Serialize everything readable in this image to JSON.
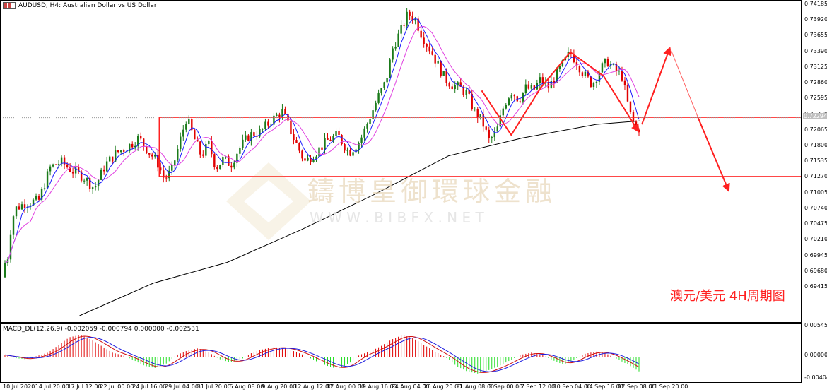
{
  "header": {
    "symbol_title": "AUDUSD, H4:  Australian Dollar vs US Dollar",
    "macd_title": "MACD_DL(12,26,9) -0.002059 -0.000794 0.000000 -0.002531"
  },
  "watermark": {
    "cn": "鑄博皇御環球金融",
    "url": "W W W . B I B F X . N E T"
  },
  "caption": "澳元/美元 4H周期图",
  "colors": {
    "bull": "#1a7a1a",
    "bear": "#e00000",
    "ma_fast": "#1a1aff",
    "ma_slow": "#e040e0",
    "ma_200": "#000000",
    "annotation": "#ff2020",
    "hist_pos": "#e00000",
    "hist_neg": "#22dd22"
  },
  "chart_data": [
    {
      "type": "candlestick",
      "title": "AUDUSD, H4:  Australian Dollar vs US Dollar",
      "price_axis": [
        "0.74185",
        "0.73920",
        "0.73655",
        "0.73390",
        "0.73125",
        "0.72860",
        "0.72595",
        "0.72330",
        "0.72065",
        "0.71800",
        "0.71535",
        "0.71270",
        "0.71005",
        "0.70740",
        "0.70475",
        "0.70210",
        "0.69945",
        "0.69680",
        "0.69415"
      ],
      "current_price": "0.72294",
      "time_axis": [
        "10 Jul 2020",
        "14 Jul 20:00",
        "17 Jul 12:00",
        "22 Jul 00:00",
        "24 Jul 16:00",
        "29 Jul 04:00",
        "31 Jul 20:00",
        "5 Aug 08:00",
        "9 Aug 20:00",
        "12 Aug 12:00",
        "17 Aug 00:00",
        "19 Aug 16:00",
        "24 Aug 04:00",
        "26 Aug 20:00",
        "31 Aug 08:00",
        "3 Sep 00:00",
        "7 Sep 12:00",
        "10 Sep 04:00",
        "14 Sep 16:00",
        "17 Sep 08:00",
        "21 Sep 20:00"
      ],
      "close_path": [
        [
          0.697,
          0.696
        ],
        [
          0.699,
          0.6985
        ],
        [
          0.701,
          0.698
        ],
        [
          0.704,
          0.7005
        ],
        [
          0.706,
          0.7035
        ],
        [
          0.712,
          0.7075
        ],
        [
          0.726,
          0.7085
        ],
        [
          0.745,
          0.709
        ],
        [
          0.76,
          0.7145
        ],
        [
          0.775,
          0.7155
        ],
        [
          0.79,
          0.714
        ],
        [
          0.805,
          0.713
        ],
        [
          0.82,
          0.711
        ],
        [
          0.835,
          0.715
        ],
        [
          0.85,
          0.717
        ],
        [
          0.865,
          0.718
        ],
        [
          0.88,
          0.7195
        ],
        [
          0.895,
          0.717
        ],
        [
          0.905,
          0.7155
        ],
        [
          0.915,
          0.7125
        ],
        [
          0.925,
          0.714
        ],
        [
          0.935,
          0.7185
        ],
        [
          0.945,
          0.723
        ],
        [
          0.955,
          0.7195
        ],
        [
          0.965,
          0.7165
        ],
        [
          0.975,
          0.7185
        ],
        [
          0.985,
          0.7145
        ],
        [
          0.995,
          0.716
        ],
        [
          1.005,
          0.715
        ],
        [
          1.015,
          0.7175
        ],
        [
          1.03,
          0.72
        ],
        [
          1.045,
          0.7205
        ],
        [
          1.06,
          0.7225
        ],
        [
          1.075,
          0.724
        ],
        [
          1.09,
          0.7195
        ],
        [
          1.105,
          0.7155
        ],
        [
          1.12,
          0.717
        ],
        [
          1.135,
          0.719
        ],
        [
          1.15,
          0.72
        ],
        [
          1.165,
          0.717
        ],
        [
          1.18,
          0.719
        ],
        [
          1.195,
          0.7235
        ],
        [
          1.205,
          0.7265
        ],
        [
          1.215,
          0.729
        ],
        [
          1.225,
          0.735
        ],
        [
          1.235,
          0.7375
        ],
        [
          1.245,
          0.7405
        ],
        [
          1.255,
          0.7395
        ],
        [
          1.265,
          0.7365
        ],
        [
          1.275,
          0.7345
        ],
        [
          1.285,
          0.732
        ],
        [
          1.295,
          0.7295
        ],
        [
          1.305,
          0.7285
        ],
        [
          1.315,
          0.728
        ],
        [
          1.325,
          0.727
        ],
        [
          1.335,
          0.724
        ],
        [
          1.345,
          0.7225
        ],
        [
          1.355,
          0.719
        ],
        [
          1.365,
          0.7205
        ],
        [
          1.375,
          0.725
        ],
        [
          1.385,
          0.7275
        ],
        [
          1.395,
          0.726
        ],
        [
          1.405,
          0.728
        ],
        [
          1.415,
          0.7275
        ],
        [
          1.425,
          0.7295
        ],
        [
          1.435,
          0.728
        ],
        [
          1.445,
          0.73
        ],
        [
          1.455,
          0.732
        ],
        [
          1.465,
          0.734
        ],
        [
          1.475,
          0.732
        ],
        [
          1.485,
          0.73
        ],
        [
          1.495,
          0.7285
        ],
        [
          1.505,
          0.731
        ],
        [
          1.515,
          0.7325
        ],
        [
          1.525,
          0.731
        ],
        [
          1.535,
          0.73
        ],
        [
          1.545,
          0.724
        ],
        [
          1.555,
          0.7205
        ],
        [
          1.56,
          0.7215
        ]
      ],
      "annotations": {
        "box_top": 0.723,
        "box_bottom": 0.713,
        "forecast": [
          [
            1.56,
            0.7215
          ],
          [
            1.6,
            0.7348
          ],
          [
            1.68,
            0.7105
          ]
        ]
      }
    },
    {
      "type": "bar",
      "title": "MACD_DL(12,26,9) -0.002059 -0.000794 0.000000 -0.002531",
      "axis": [
        "0.005456",
        "0.000000",
        "-0.004047"
      ],
      "hist_pattern": [
        0.4,
        -0.2,
        -0.4,
        0.2,
        0.8,
        2.2,
        3.6,
        4.0,
        3.2,
        2.0,
        0.8,
        0.3,
        -0.6,
        -1.6,
        -2.0,
        -1.2,
        0.4,
        1.2,
        1.6,
        0.8,
        -0.4,
        -1.0,
        -0.4,
        0.8,
        1.4,
        1.8,
        1.6,
        1.0,
        0.2,
        -0.8,
        -1.6,
        -2.2,
        -1.2,
        0.4,
        1.0,
        2.0,
        3.2,
        4.0,
        3.4,
        2.2,
        1.0,
        0,
        -1.6,
        -2.6,
        -3.0,
        -2.4,
        -1.6,
        -0.6,
        0.4,
        0.8,
        0.4,
        -0.6,
        -1.4,
        -0.4,
        0.6,
        1.0,
        0.6,
        -0.4,
        -1.4,
        -2.6
      ]
    }
  ]
}
